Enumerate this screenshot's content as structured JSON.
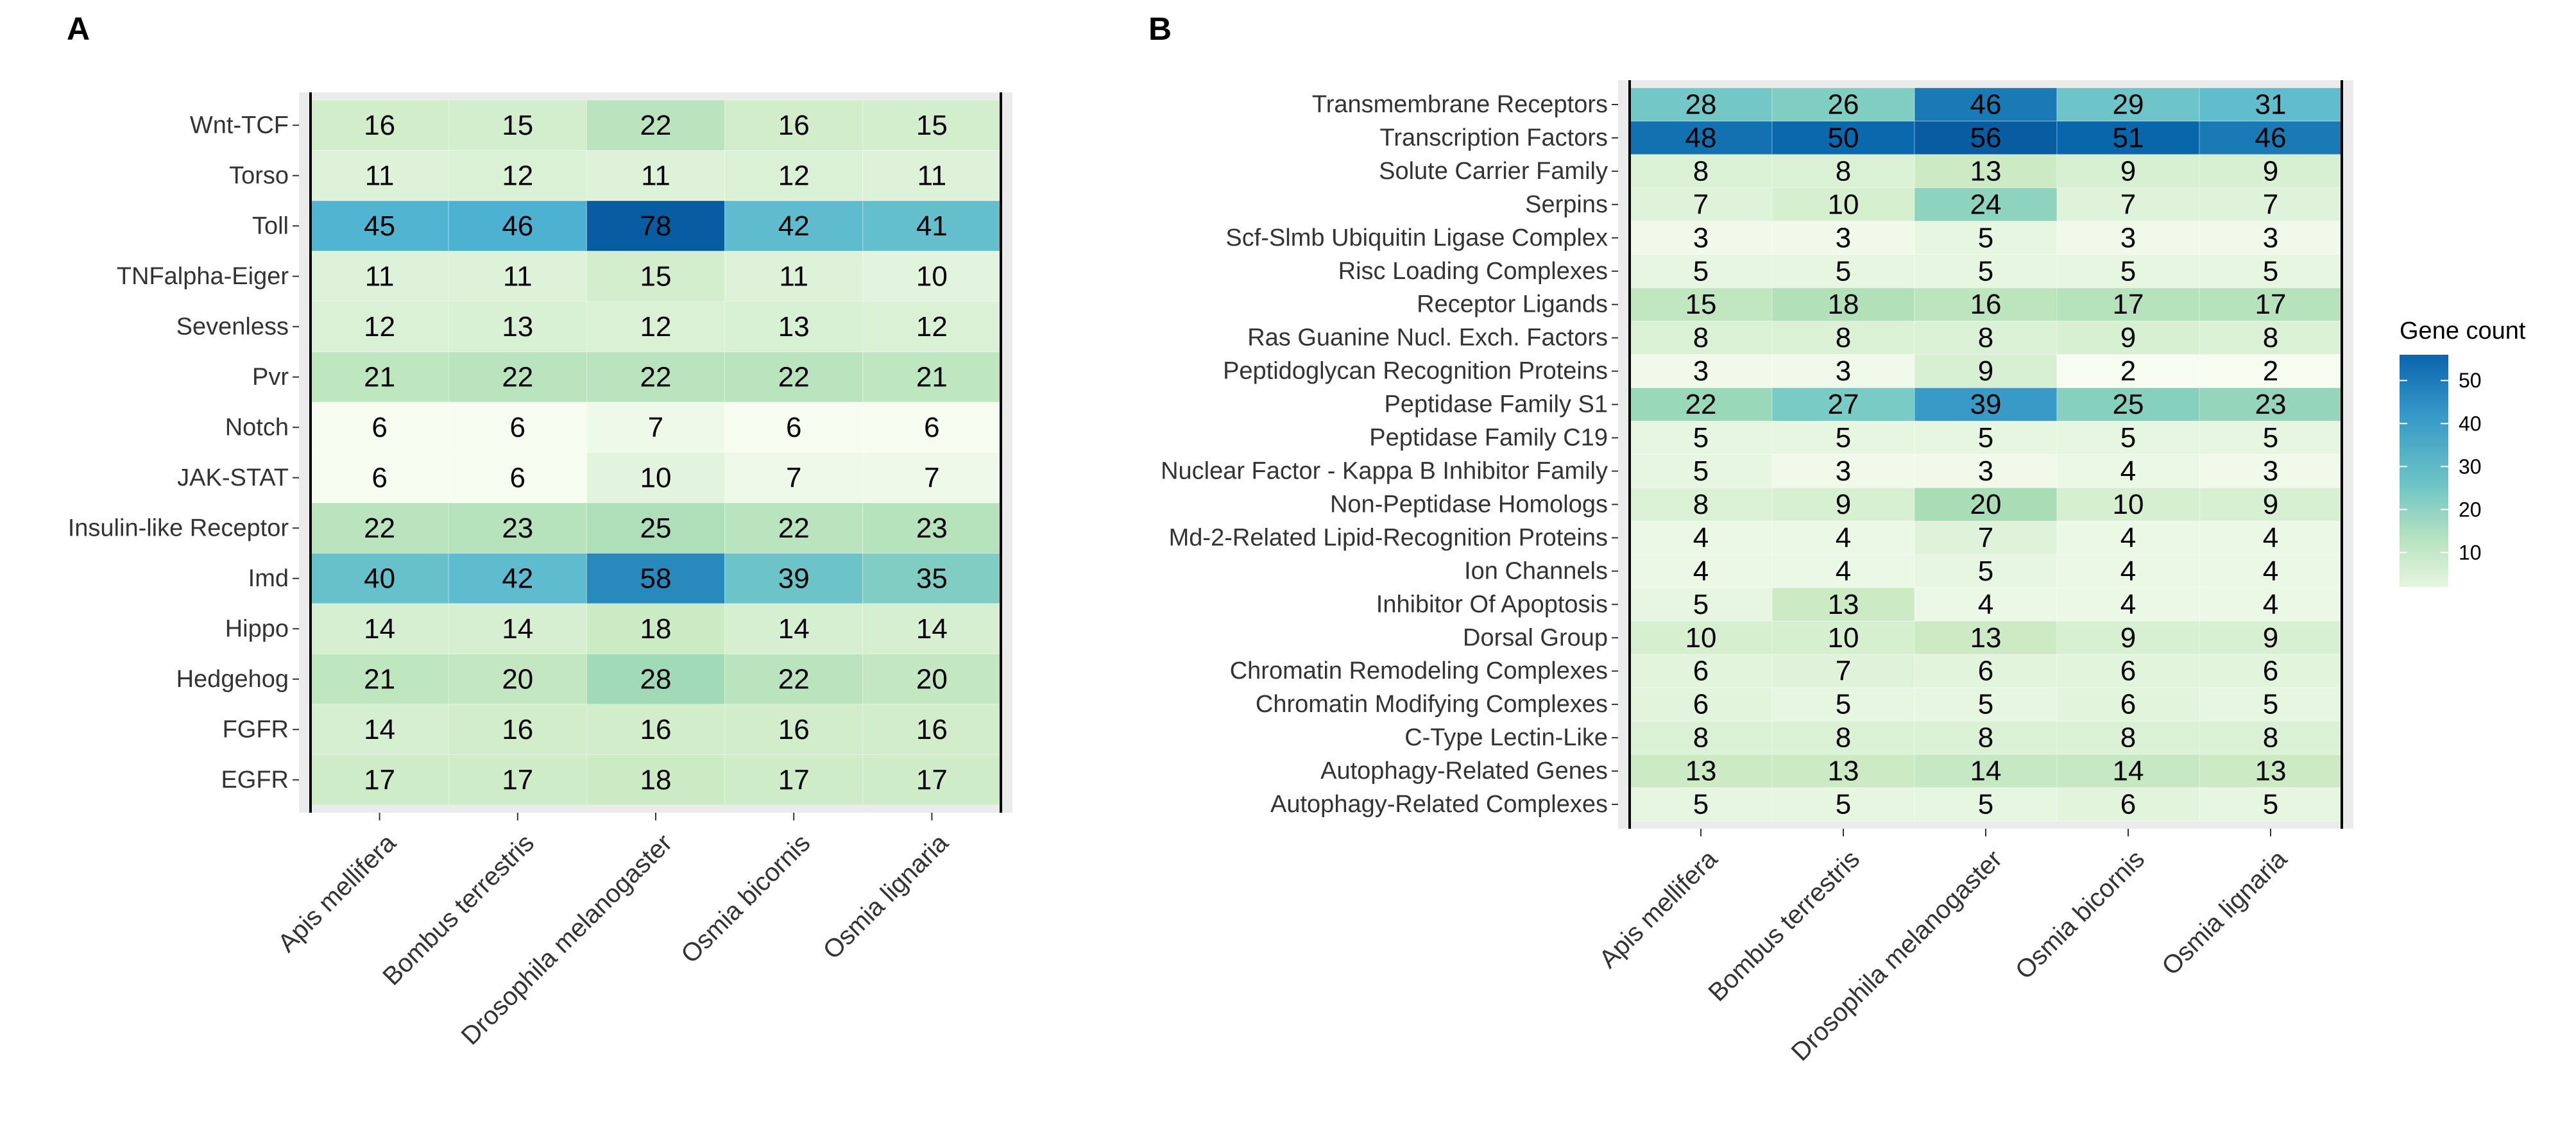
{
  "chart_data": [
    {
      "type": "heatmap",
      "panel": "A",
      "columns": [
        "Apis mellifera",
        "Bombus terrestris",
        "Drosophila melanogaster",
        "Osmia bicornis",
        "Osmia lignaria"
      ],
      "rows": [
        "Wnt-TCF",
        "Torso",
        "Toll",
        "TNFalpha-Eiger",
        "Sevenless",
        "Pvr",
        "Notch",
        "JAK-STAT",
        "Insulin-like Receptor",
        "Imd",
        "Hippo",
        "Hedgehog",
        "FGFR",
        "EGFR"
      ],
      "values": [
        [
          16,
          15,
          22,
          16,
          15
        ],
        [
          11,
          12,
          11,
          12,
          11
        ],
        [
          45,
          46,
          78,
          42,
          41
        ],
        [
          11,
          11,
          15,
          11,
          10
        ],
        [
          12,
          13,
          12,
          13,
          12
        ],
        [
          21,
          22,
          22,
          22,
          21
        ],
        [
          6,
          6,
          7,
          6,
          6
        ],
        [
          6,
          6,
          10,
          7,
          7
        ],
        [
          22,
          23,
          25,
          22,
          23
        ],
        [
          40,
          42,
          58,
          39,
          35
        ],
        [
          14,
          14,
          18,
          14,
          14
        ],
        [
          21,
          20,
          28,
          22,
          20
        ],
        [
          14,
          16,
          16,
          16,
          16
        ],
        [
          17,
          17,
          18,
          17,
          17
        ]
      ],
      "color_range": [
        6,
        78
      ]
    },
    {
      "type": "heatmap",
      "panel": "B",
      "columns": [
        "Apis mellifera",
        "Bombus terrestris",
        "Drosophila melanogaster",
        "Osmia bicornis",
        "Osmia lignaria"
      ],
      "rows": [
        "Transmembrane Receptors",
        "Transcription Factors",
        "Solute Carrier Family",
        "Serpins",
        "Scf-Slmb Ubiquitin Ligase Complex",
        "Risc Loading Complexes",
        "Receptor Ligands",
        "Ras Guanine Nucl. Exch. Factors",
        "Peptidoglycan Recognition Proteins",
        "Peptidase Family S1",
        "Peptidase Family C19",
        "Nuclear Factor - Kappa B Inhibitor Family",
        "Non-Peptidase Homologs",
        "Md-2-Related Lipid-Recognition Proteins",
        "Ion Channels",
        "Inhibitor Of Apoptosis",
        "Dorsal Group",
        "Chromatin Remodeling Complexes",
        "Chromatin Modifying Complexes",
        "C-Type Lectin-Like",
        "Autophagy-Related Genes",
        "Autophagy-Related Complexes"
      ],
      "values": [
        [
          28,
          26,
          46,
          29,
          31
        ],
        [
          48,
          50,
          56,
          51,
          46
        ],
        [
          8,
          8,
          13,
          9,
          9
        ],
        [
          7,
          10,
          24,
          7,
          7
        ],
        [
          3,
          3,
          5,
          3,
          3
        ],
        [
          5,
          5,
          5,
          5,
          5
        ],
        [
          15,
          18,
          16,
          17,
          17
        ],
        [
          8,
          8,
          8,
          9,
          8
        ],
        [
          3,
          3,
          9,
          2,
          2
        ],
        [
          22,
          27,
          39,
          25,
          23
        ],
        [
          5,
          5,
          5,
          5,
          5
        ],
        [
          5,
          3,
          3,
          4,
          3
        ],
        [
          8,
          9,
          20,
          10,
          9
        ],
        [
          4,
          4,
          7,
          4,
          4
        ],
        [
          4,
          4,
          5,
          4,
          4
        ],
        [
          5,
          13,
          4,
          4,
          4
        ],
        [
          10,
          10,
          13,
          9,
          9
        ],
        [
          6,
          7,
          6,
          6,
          6
        ],
        [
          6,
          5,
          5,
          6,
          5
        ],
        [
          8,
          8,
          8,
          8,
          8
        ],
        [
          13,
          13,
          14,
          14,
          13
        ],
        [
          5,
          5,
          5,
          6,
          5
        ]
      ],
      "color_range": [
        2,
        56
      ]
    }
  ],
  "legend": {
    "title": "Gene count",
    "ticks": [
      10,
      20,
      30,
      40,
      50
    ],
    "range": [
      2,
      56
    ]
  },
  "colors": {
    "low": "#f7fcf0",
    "mid_low": "#ccebc5",
    "mid": "#7bccc4",
    "mid_high": "#2b8cbe",
    "high": "#0868ac",
    "panel_bg": "#ebebeb"
  }
}
